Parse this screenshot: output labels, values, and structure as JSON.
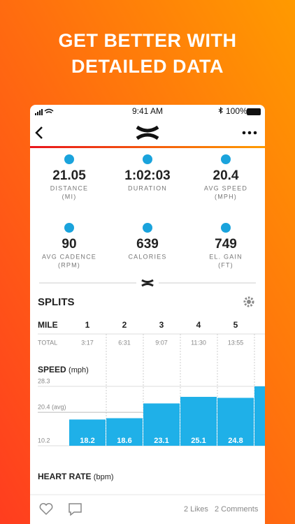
{
  "header": {
    "title_lines": [
      "GET BETTER WITH",
      "DETAILED DATA"
    ]
  },
  "status_bar": {
    "time": "9:41 AM",
    "battery": "100%"
  },
  "stats": [
    {
      "value": "21.05",
      "label": "DISTANCE",
      "unit": "(MI)"
    },
    {
      "value": "1:02:03",
      "label": "DURATION",
      "unit": null
    },
    {
      "value": "20.4",
      "label": "AVG SPEED",
      "unit": "(MPH)"
    },
    {
      "value": "90",
      "label": "AVG CADENCE",
      "unit": "(RPM)"
    },
    {
      "value": "639",
      "label": "CALORIES",
      "unit": null
    },
    {
      "value": "749",
      "label": "EL. GAIN",
      "unit": "(FT)"
    }
  ],
  "splits": {
    "title": "SPLITS",
    "row_label": "MILE",
    "miles": [
      "1",
      "2",
      "3",
      "4",
      "5",
      null
    ],
    "total_label": "TOTAL",
    "totals": [
      "3:17",
      "6:31",
      "9:07",
      "11:30",
      "13:55",
      null
    ]
  },
  "speed_chart": {
    "type": "bar",
    "title": "SPEED",
    "unit": "(mph)",
    "values": [
      18.2,
      18.6,
      23.1,
      25.1,
      24.8,
      28.3
    ],
    "ylim": [
      10.2,
      28.3
    ],
    "yticks": [
      28.3,
      {
        "value": 20.4,
        "label": "20.4 (avg)"
      },
      10.2
    ],
    "color": "#1fb0e8"
  },
  "heart_rate": {
    "title": "HEART RATE",
    "unit": "(bpm)"
  },
  "footer": {
    "likes": "2 Likes",
    "comments": "2 Comments"
  }
}
